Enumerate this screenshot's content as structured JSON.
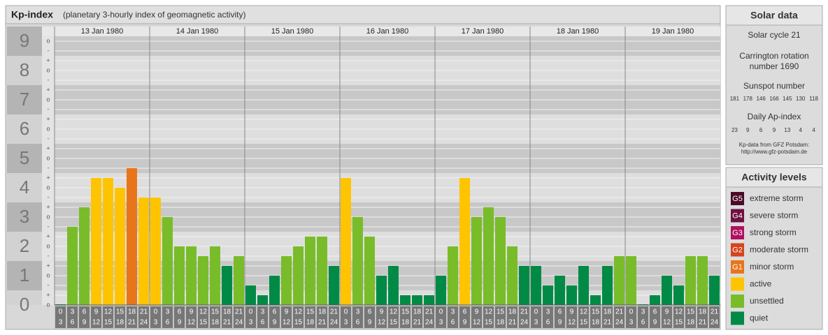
{
  "chart_data": {
    "type": "bar",
    "title": "Kp-index",
    "subtitle": "(planetary 3-hourly index of geomagnetic activity)",
    "ylim": [
      0,
      9.5
    ],
    "yticks": [
      0,
      1,
      2,
      3,
      4,
      5,
      6,
      7,
      8,
      9
    ],
    "kp_marks": [
      "-",
      "o",
      "+"
    ],
    "grid": true,
    "time_slots": [
      {
        "start": "0",
        "end": "3"
      },
      {
        "start": "3",
        "end": "6"
      },
      {
        "start": "6",
        "end": "9"
      },
      {
        "start": "9",
        "end": "12"
      },
      {
        "start": "12",
        "end": "15"
      },
      {
        "start": "15",
        "end": "18"
      },
      {
        "start": "18",
        "end": "21"
      },
      {
        "start": "21",
        "end": "24"
      }
    ],
    "days": [
      {
        "date": "13 Jan 1980",
        "values": [
          0,
          2.667,
          3.333,
          4.333,
          4.333,
          4,
          4.667,
          3.667
        ],
        "colors": [
          "#008a46",
          "#79bc2a",
          "#79bc2a",
          "#ffc400",
          "#ffc400",
          "#ffc400",
          "#e8751a",
          "#ffc400"
        ]
      },
      {
        "date": "14 Jan 1980",
        "values": [
          3.667,
          3,
          2,
          2,
          1.667,
          2,
          1.333,
          1.667
        ],
        "colors": [
          "#ffc400",
          "#79bc2a",
          "#79bc2a",
          "#79bc2a",
          "#79bc2a",
          "#79bc2a",
          "#008a46",
          "#79bc2a"
        ]
      },
      {
        "date": "15 Jan 1980",
        "values": [
          0.667,
          0.333,
          1,
          1.667,
          2,
          2.333,
          2.333,
          1.333
        ],
        "colors": [
          "#008a46",
          "#008a46",
          "#008a46",
          "#79bc2a",
          "#79bc2a",
          "#79bc2a",
          "#79bc2a",
          "#008a46"
        ]
      },
      {
        "date": "16 Jan 1980",
        "values": [
          4.333,
          3,
          2.333,
          1,
          1.333,
          0.333,
          0.333,
          0.333
        ],
        "colors": [
          "#ffc400",
          "#79bc2a",
          "#79bc2a",
          "#008a46",
          "#008a46",
          "#008a46",
          "#008a46",
          "#008a46"
        ]
      },
      {
        "date": "17 Jan 1980",
        "values": [
          1,
          2,
          4.333,
          3,
          3.333,
          3,
          2,
          1.333
        ],
        "colors": [
          "#008a46",
          "#79bc2a",
          "#ffc400",
          "#79bc2a",
          "#79bc2a",
          "#79bc2a",
          "#79bc2a",
          "#008a46"
        ]
      },
      {
        "date": "18 Jan 1980",
        "values": [
          1.333,
          0.667,
          1,
          0.667,
          1.333,
          0.333,
          1.333,
          1.667
        ],
        "colors": [
          "#008a46",
          "#008a46",
          "#008a46",
          "#008a46",
          "#008a46",
          "#008a46",
          "#008a46",
          "#79bc2a"
        ]
      },
      {
        "date": "19 Jan 1980",
        "values": [
          1.667,
          0,
          0.333,
          1,
          0.667,
          1.667,
          1.667,
          1
        ],
        "colors": [
          "#79bc2a",
          "#008a46",
          "#008a46",
          "#008a46",
          "#008a46",
          "#79bc2a",
          "#79bc2a",
          "#008a46"
        ]
      }
    ]
  },
  "solar_data": {
    "title": "Solar data",
    "cycle": "Solar cycle 21",
    "carrington": "Carrington rotation number 1690",
    "sunspot_title": "Sunspot number",
    "sunspots": [
      181,
      178,
      146,
      166,
      145,
      130,
      118
    ],
    "ap_title": "Daily Ap-index",
    "ap": [
      23,
      9,
      6,
      9,
      13,
      4,
      4
    ],
    "source": "Kp-data from GFZ Potsdam:",
    "url": "http://www.gfz-potsdam.de"
  },
  "activity_levels": {
    "title": "Activity levels",
    "items": [
      {
        "badge": "G5",
        "label": "extreme storm",
        "color": "#4a0a28"
      },
      {
        "badge": "G4",
        "label": "severe storm",
        "color": "#6e1040"
      },
      {
        "badge": "G3",
        "label": "strong storm",
        "color": "#b01060"
      },
      {
        "badge": "G2",
        "label": "moderate storm",
        "color": "#d4441c"
      },
      {
        "badge": "G1",
        "label": "minor storm",
        "color": "#e8751a"
      },
      {
        "label": "active",
        "color": "#ffc400"
      },
      {
        "label": "unsettled",
        "color": "#79bc2a"
      },
      {
        "label": "quiet",
        "color": "#008a46"
      }
    ]
  }
}
